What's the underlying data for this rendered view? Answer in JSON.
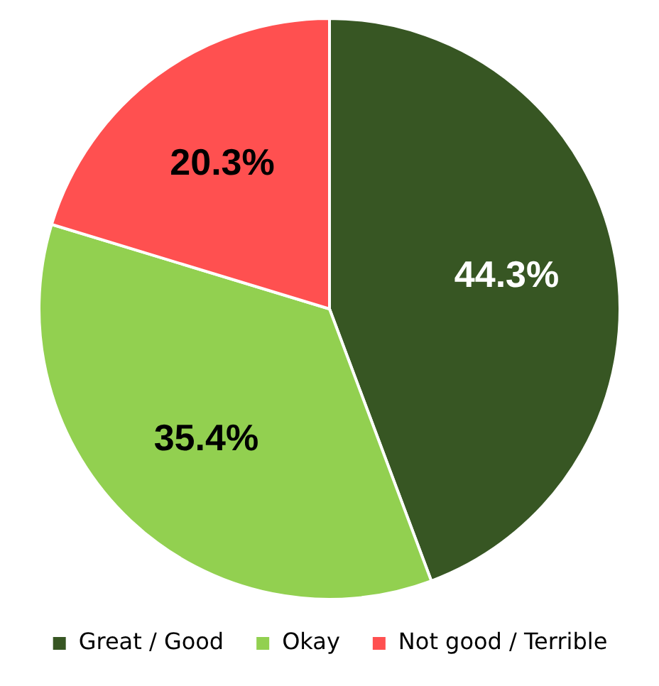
{
  "chart_data": {
    "type": "pie",
    "categories": [
      "Great / Good",
      "Okay",
      "Not good / Terrible"
    ],
    "values": [
      44.3,
      35.4,
      20.3
    ],
    "colors": [
      "#375623",
      "#92d050",
      "#ff5050"
    ],
    "value_labels": [
      "44.3%",
      "35.4%",
      "20.3%"
    ],
    "legend": "bottom"
  }
}
